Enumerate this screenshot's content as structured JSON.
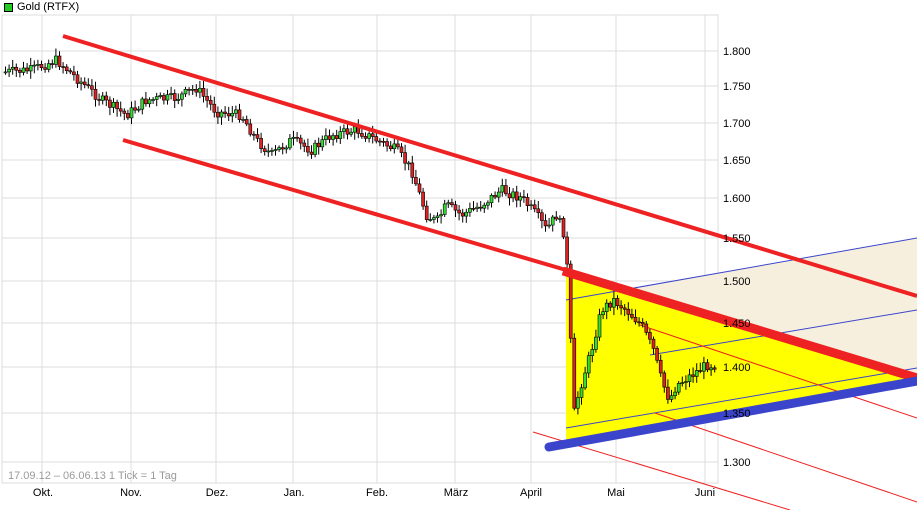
{
  "title": {
    "label": "Gold (RTFX)",
    "swatch_color": "#22cc22"
  },
  "footer": {
    "range_text": "17.09.12 – 06.06.13   1 Tick = 1 Tag"
  },
  "colors": {
    "up_candle": "#33dd33",
    "down_candle": "#dd2222",
    "channel_red": "#ee2222",
    "support_blue": "#3b45cc",
    "triangle_fill": "#ffff00",
    "wedge_fill": "#f7efdd",
    "grid": "#dcdcdc"
  },
  "chart_data": {
    "type": "candlestick",
    "title": "Gold (RTFX)",
    "xlabel": "",
    "ylabel": "",
    "date_range": "17.09.12 – 06.06.13",
    "tick_interval": "1 Tick = 1 Tag",
    "y_ticks": [
      "1.800",
      "1.750",
      "1.700",
      "1.650",
      "1.600",
      "1.550",
      "1.500",
      "1.450",
      "1.400",
      "1.350",
      "1.300"
    ],
    "y_tick_values": [
      1800,
      1750,
      1700,
      1650,
      1600,
      1550,
      1500,
      1450,
      1400,
      1350,
      1300
    ],
    "ylim": [
      1280,
      1830
    ],
    "x_ticks": [
      "Okt.",
      "Nov.",
      "Dez.",
      "Jan.",
      "Feb.",
      "März",
      "April",
      "Mai",
      "Juni"
    ],
    "grid": true,
    "approx_closes": {
      "x": [
        "Sep 17",
        "Okt",
        "Nov",
        "Dez",
        "Jan",
        "Feb",
        "März",
        "April",
        "Apr 12",
        "Apr 16",
        "Mai",
        "Mai 20",
        "Juni"
      ],
      "values": [
        1770,
        1780,
        1715,
        1705,
        1685,
        1670,
        1585,
        1590,
        1480,
        1360,
        1465,
        1365,
        1400
      ]
    },
    "annotations": [
      "Descending red channel (upper and lower trendlines)",
      "Yellow triangle formation (April–June 2013) with thick red resistance and thick blue support",
      "Blue dashed-style ascending parallel lines",
      "Thin red descending parallel lines",
      "Beige projection wedge to the right"
    ]
  }
}
